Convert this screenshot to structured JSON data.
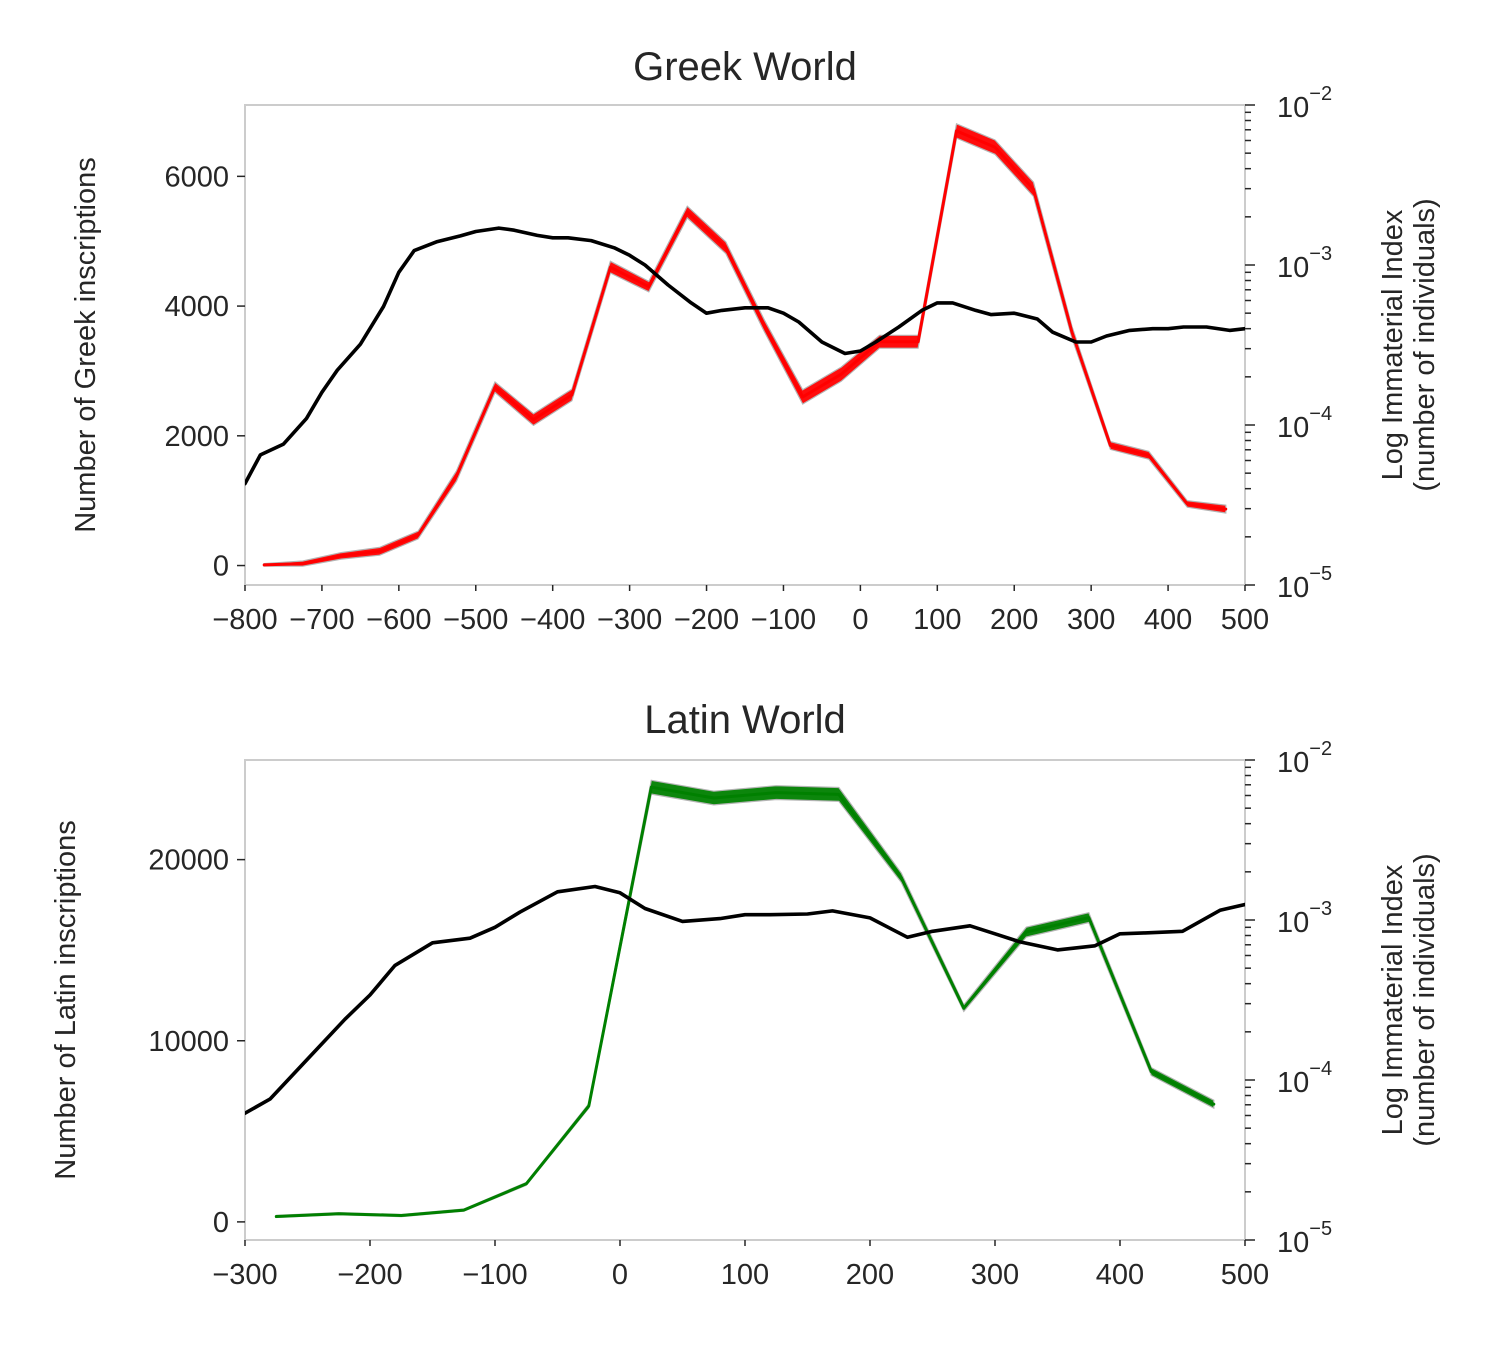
{
  "chart_data": [
    {
      "type": "line",
      "title": "Greek World",
      "xlim": [
        -800,
        500
      ],
      "ylabel": "Number of Greek inscriptions",
      "ylim": [
        -300,
        7100
      ],
      "yticks": [
        0,
        2000,
        4000,
        6000
      ],
      "xticks": [
        -800,
        -700,
        -600,
        -500,
        -400,
        -300,
        -200,
        -100,
        0,
        100,
        200,
        300,
        400,
        500
      ],
      "y2label": [
        "Log Immaterial Index",
        "(number of individuals)"
      ],
      "y2scale": "log",
      "y2lim": [
        1e-05,
        0.01
      ],
      "y2ticks": [
        {
          "value": 1e-05,
          "base": "10",
          "exp": "−5"
        },
        {
          "value": 0.0001,
          "base": "10",
          "exp": "−4"
        },
        {
          "value": 0.001,
          "base": "10",
          "exp": "−3"
        },
        {
          "value": 0.01,
          "base": "10",
          "exp": "−2"
        }
      ],
      "grid": false,
      "series": [
        {
          "axis": "left",
          "color": "#ff0000",
          "x": [
            -775,
            -725,
            -675,
            -625,
            -575,
            -525,
            -475,
            -425,
            -375,
            -325,
            -275,
            -225,
            -175,
            -125,
            -75,
            -25,
            25,
            75,
            125,
            175,
            225,
            275,
            325,
            375,
            425,
            475
          ],
          "values": [
            10,
            30,
            150,
            220,
            470,
            1380,
            2750,
            2250,
            2630,
            4600,
            4300,
            5450,
            4900,
            3700,
            2600,
            2950,
            3450,
            3450,
            6700,
            6450,
            5800,
            3600,
            1850,
            1700,
            950,
            870
          ],
          "band": [
            20,
            40,
            50,
            60,
            60,
            80,
            80,
            90,
            90,
            90,
            80,
            90,
            90,
            90,
            110,
            110,
            100,
            100,
            110,
            110,
            110,
            90,
            60,
            60,
            50,
            60
          ]
        },
        {
          "axis": "right",
          "color": "#000000",
          "x": [
            -800,
            -780,
            -750,
            -720,
            -700,
            -680,
            -650,
            -620,
            -600,
            -580,
            -550,
            -520,
            -500,
            -470,
            -450,
            -420,
            -400,
            -380,
            -350,
            -320,
            -300,
            -280,
            -250,
            -220,
            -200,
            -180,
            -150,
            -120,
            -100,
            -80,
            -50,
            -20,
            0,
            20,
            50,
            80,
            100,
            120,
            150,
            170,
            200,
            230,
            250,
            280,
            300,
            320,
            350,
            380,
            400,
            420,
            450,
            480,
            500
          ],
          "values": [
            4.3e-05,
            6.5e-05,
            7.6e-05,
            0.00011,
            0.00016,
            0.00022,
            0.00032,
            0.00055,
            0.0009,
            0.00123,
            0.0014,
            0.00152,
            0.00162,
            0.0017,
            0.00165,
            0.00153,
            0.00148,
            0.00148,
            0.00142,
            0.00128,
            0.00115,
            0.001,
            0.00075,
            0.00058,
            0.0005,
            0.00052,
            0.00054,
            0.00054,
            0.0005,
            0.00044,
            0.00033,
            0.00028,
            0.00029,
            0.00033,
            0.00041,
            0.00052,
            0.00058,
            0.00058,
            0.00052,
            0.00049,
            0.0005,
            0.00046,
            0.00038,
            0.00033,
            0.00033,
            0.00036,
            0.00039,
            0.0004,
            0.0004,
            0.00041,
            0.00041,
            0.00039,
            0.0004
          ]
        }
      ]
    },
    {
      "type": "line",
      "title": "Latin World",
      "xlim": [
        -300,
        500
      ],
      "ylabel": "Number of Latin inscriptions",
      "ylim": [
        -1000,
        25500
      ],
      "yticks": [
        0,
        10000,
        20000
      ],
      "xticks": [
        -300,
        -200,
        -100,
        0,
        100,
        200,
        300,
        400,
        500
      ],
      "y2label": [
        "Log Immaterial Index",
        "(number of individuals)"
      ],
      "y2scale": "log",
      "y2lim": [
        1e-05,
        0.01
      ],
      "y2ticks": [
        {
          "value": 1e-05,
          "base": "10",
          "exp": "−5"
        },
        {
          "value": 0.0001,
          "base": "10",
          "exp": "−4"
        },
        {
          "value": 0.001,
          "base": "10",
          "exp": "−3"
        },
        {
          "value": 0.01,
          "base": "10",
          "exp": "−2"
        }
      ],
      "grid": false,
      "series": [
        {
          "axis": "left",
          "color": "#008000",
          "x": [
            -275,
            -225,
            -175,
            -125,
            -75,
            -25,
            25,
            75,
            125,
            175,
            225,
            275,
            325,
            375,
            425,
            475
          ],
          "values": [
            300,
            450,
            350,
            650,
            2100,
            6400,
            24000,
            23400,
            23700,
            23600,
            19000,
            11800,
            16000,
            16800,
            8300,
            6500
          ],
          "band": [
            60,
            60,
            60,
            60,
            80,
            120,
            380,
            380,
            380,
            380,
            260,
            180,
            270,
            270,
            220,
            220
          ]
        },
        {
          "axis": "right",
          "color": "#000000",
          "x": [
            -300,
            -280,
            -250,
            -220,
            -200,
            -180,
            -150,
            -120,
            -100,
            -80,
            -50,
            -20,
            0,
            20,
            50,
            80,
            100,
            120,
            150,
            170,
            200,
            230,
            250,
            280,
            300,
            320,
            350,
            380,
            400,
            420,
            450,
            480,
            500
          ],
          "values": [
            6.2e-05,
            7.6e-05,
            0.000135,
            0.00024,
            0.00034,
            0.00052,
            0.00072,
            0.00077,
            0.0009,
            0.00112,
            0.0015,
            0.00162,
            0.00148,
            0.00118,
            0.00098,
            0.00102,
            0.00108,
            0.00108,
            0.00109,
            0.00114,
            0.00103,
            0.00078,
            0.00085,
            0.00092,
            0.00082,
            0.00073,
            0.00065,
            0.00069,
            0.00082,
            0.00083,
            0.00085,
            0.00115,
            0.00125
          ]
        }
      ]
    }
  ]
}
